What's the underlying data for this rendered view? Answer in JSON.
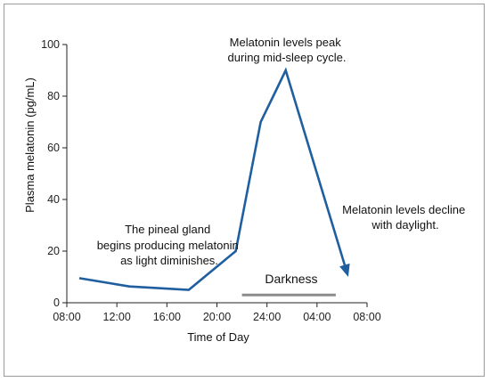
{
  "chart_data": {
    "type": "line",
    "xlabel": "Time of Day",
    "ylabel": "Plasma melatonin (pg/mL)",
    "ylim": [
      0,
      100
    ],
    "yticks": [
      "0",
      "20",
      "40",
      "60",
      "80",
      "100"
    ],
    "xticks": [
      "08:00",
      "12:00",
      "16:00",
      "20:00",
      "24:00",
      "04:00",
      "08:00"
    ],
    "x_hours_range": [
      8,
      32
    ],
    "grid": false,
    "series": [
      {
        "color": "#1f5fa0",
        "points": [
          {
            "x": "09:00",
            "y": 9.5
          },
          {
            "x": "13:00",
            "y": 6.3
          },
          {
            "x": "17:45",
            "y": 5
          },
          {
            "x": "21:30",
            "y": 20
          },
          {
            "x": "23:30",
            "y": 70
          },
          {
            "x": "00:30",
            "y": 80
          },
          {
            "x": "01:30",
            "y": 90
          },
          {
            "x": "06:30",
            "y": 10
          }
        ]
      }
    ],
    "darkness_band": {
      "label": "Darkness",
      "start": "22:00",
      "end": "05:30",
      "color": "#8c8c8c"
    },
    "annotations": [
      {
        "id": "pineal",
        "lines": [
          "The pineal gland",
          "begins producing melatonin",
          "as light diminishes."
        ]
      },
      {
        "id": "peak",
        "lines": [
          "Melatonin levels peak",
          "during mid-sleep cycle."
        ]
      },
      {
        "id": "decline",
        "lines": [
          "Melatonin levels decline",
          "with daylight."
        ]
      }
    ]
  }
}
